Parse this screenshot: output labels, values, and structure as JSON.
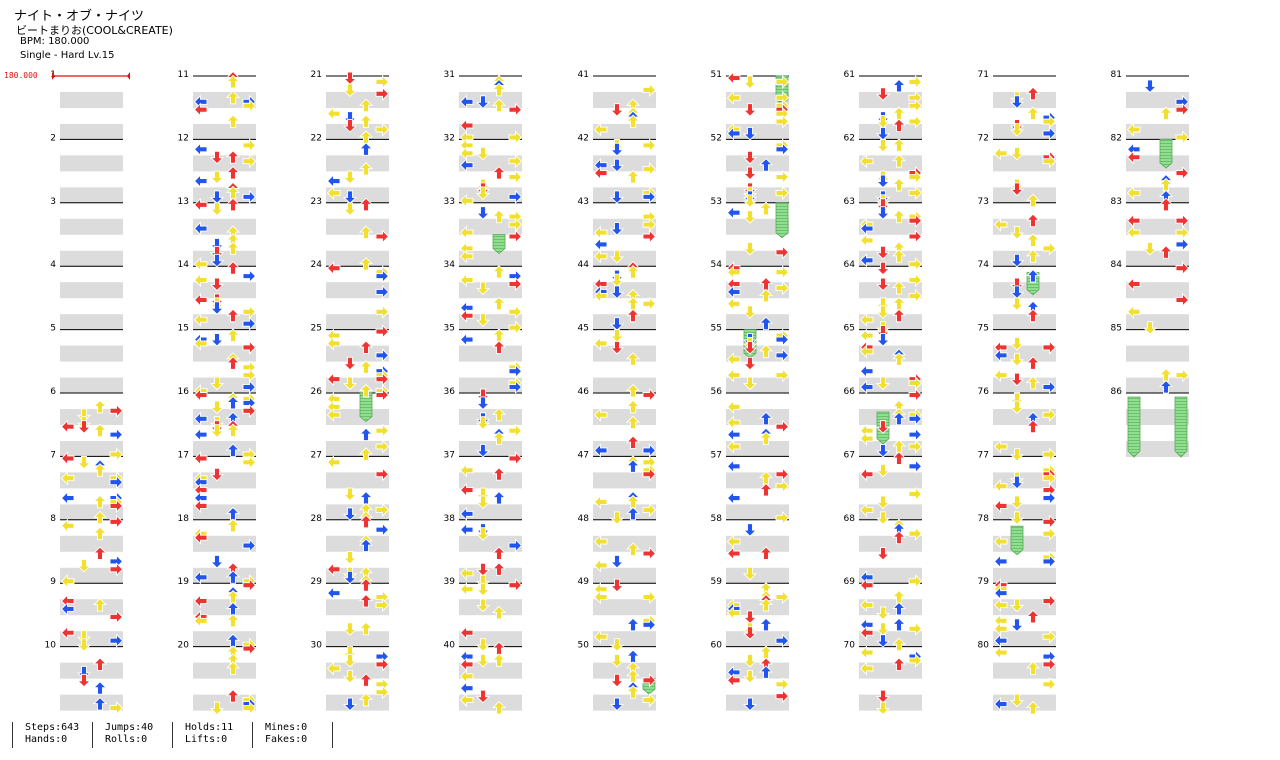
{
  "song": {
    "title": "ナイト・オブ・ナイツ",
    "artist": "ビートまりお(COOL&CREATE)",
    "bpm_label": "BPM: 180.000",
    "difficulty_label": "Single - Hard  Lv.15"
  },
  "bpm_marker": "180.000",
  "measure_count": 86,
  "colors": {
    "red_arrow": "#ee3333",
    "blue_arrow": "#2255ee",
    "yellow_arrow": "#f2e030",
    "hold": "#8ee08e",
    "band": "#dcdcdc",
    "bpm": "#dd1111"
  },
  "notes_sample": {
    "6": [
      "L",
      "R",
      "UD",
      "U"
    ],
    "7": [
      "LD",
      "U",
      "LD",
      "R"
    ],
    "16": [
      "L",
      "R",
      "D",
      "U"
    ],
    "26": [
      "L",
      "DR",
      "U",
      "D"
    ],
    "51": [
      "hold-R",
      "L",
      "D",
      "R"
    ],
    "86": [
      "hold-L",
      "hold-R"
    ]
  },
  "stats": [
    [
      "Steps:643",
      "Hands:0"
    ],
    [
      "Jumps:40",
      "Rolls:0"
    ],
    [
      "Holds:11",
      "Lifts:0"
    ],
    [
      "Mines:0",
      "Fakes:0"
    ]
  ]
}
